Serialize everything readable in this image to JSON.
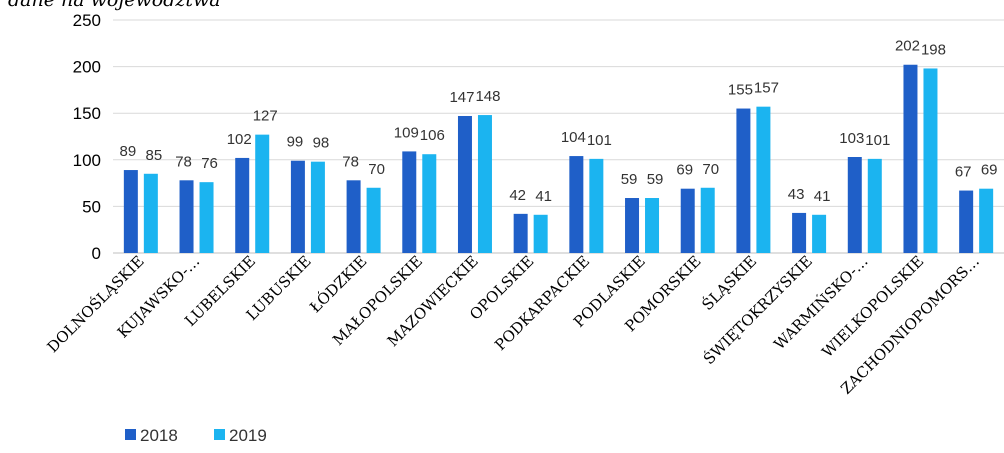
{
  "chart_data": {
    "type": "bar",
    "title": "dane na województwa",
    "categories": [
      "DOLNOŚLĄSKIE",
      "KUJAWSKO-…",
      "LUBELSKIE",
      "LUBUSKIE",
      "ŁÓDZKIE",
      "MAŁOPOLSKIE",
      "MAZOWIECKIE",
      "OPOLSKIE",
      "PODKARPACKIE",
      "PODLASKIE",
      "POMORSKIE",
      "ŚLĄSKIE",
      "ŚWIĘTOKRZYSKIE",
      "WARMIŃSKO-…",
      "WIELKOPOLSKIE",
      "ZACHODNIOPOMORS…"
    ],
    "series": [
      {
        "name": "2018",
        "color": "#1F5FC8",
        "values": [
          89,
          78,
          102,
          99,
          78,
          109,
          147,
          42,
          104,
          59,
          69,
          155,
          43,
          103,
          202,
          67
        ]
      },
      {
        "name": "2019",
        "color": "#1BB4F0",
        "values": [
          85,
          76,
          127,
          98,
          70,
          106,
          148,
          41,
          101,
          59,
          70,
          157,
          41,
          101,
          198,
          69
        ]
      }
    ],
    "ylim": [
      0,
      250
    ],
    "yticks": [
      0,
      50,
      100,
      150,
      200,
      250
    ],
    "grid": true,
    "legend": "bottom-left",
    "data_labels": true
  }
}
